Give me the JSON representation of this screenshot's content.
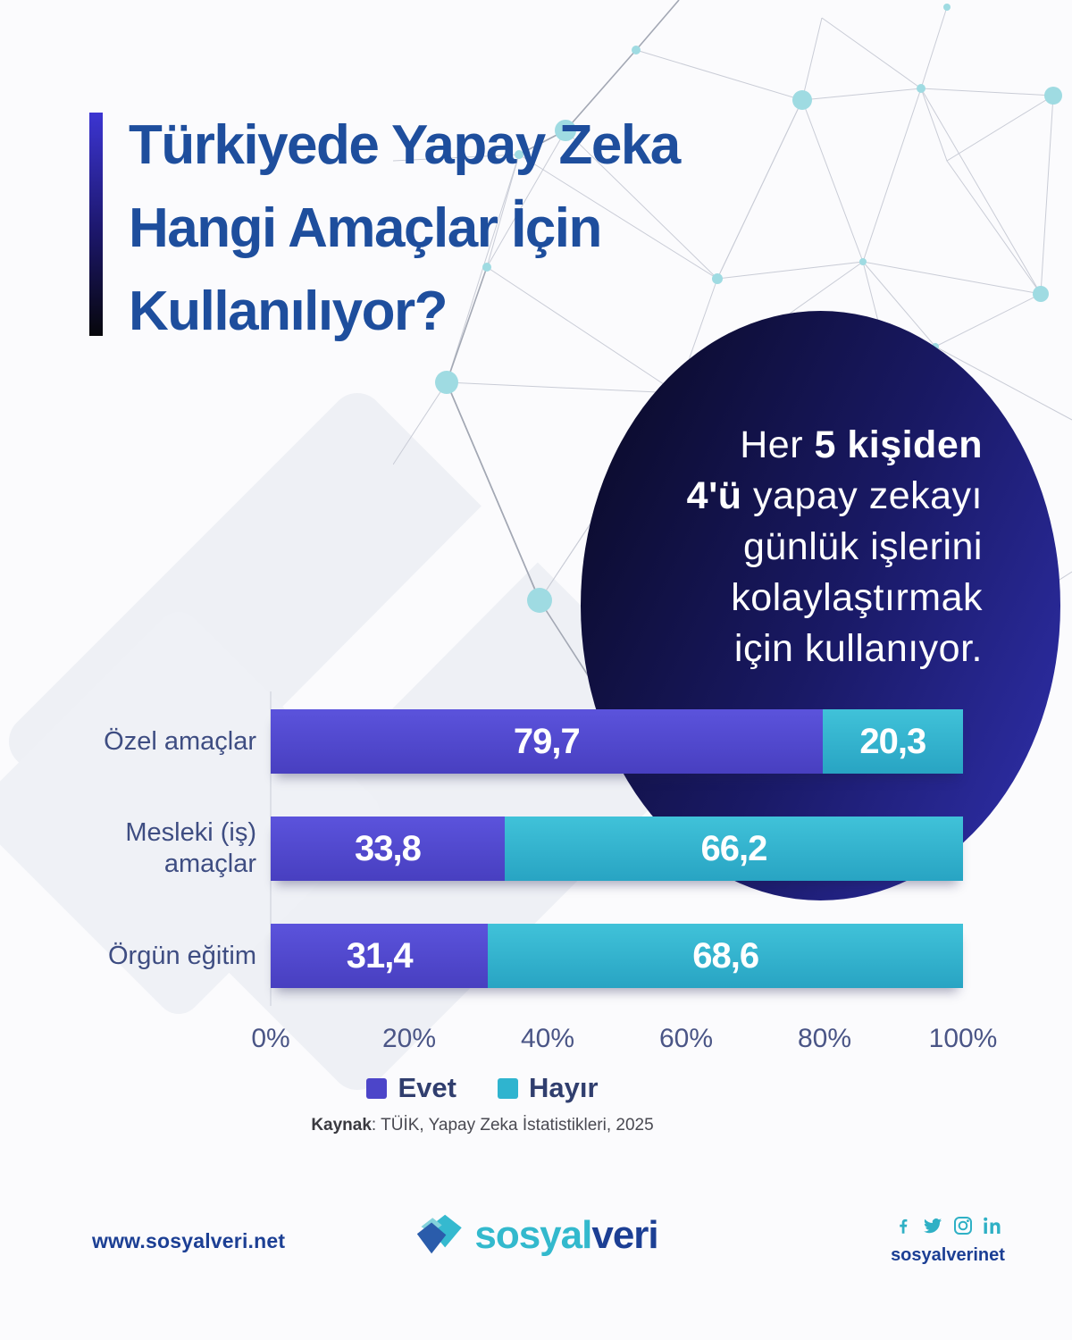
{
  "header": {
    "title_lines": [
      "Türkiyede Yapay Zeka",
      "Hangi Amaçlar İçin",
      "Kullanılıyor?"
    ]
  },
  "hero": {
    "line1_regular": "Her ",
    "line1_bold": "5 kişiden",
    "line2_bold": "4'ü",
    "line2_regular": " yapay zekayı",
    "line3": "günlük işlerini",
    "line4": "kolaylaştırmak",
    "line5": "için kullanıyor."
  },
  "chart_data": {
    "type": "bar",
    "orientation": "horizontal",
    "stacked": true,
    "categories": [
      "Özel amaçlar",
      "Mesleki (iş) amaçlar",
      "Örgün eğitim"
    ],
    "series": [
      {
        "name": "Evet",
        "color": "#4c45c9",
        "values": [
          79.7,
          33.8,
          31.4
        ]
      },
      {
        "name": "Hayır",
        "color": "#2fb4cf",
        "values": [
          20.3,
          66.2,
          68.6
        ]
      }
    ],
    "x_ticks": [
      "0%",
      "20%",
      "40%",
      "60%",
      "80%",
      "100%"
    ],
    "xlim": [
      0,
      100
    ],
    "grid": false,
    "legend_position": "bottom",
    "value_decimal_separator": ",",
    "source_label": "Kaynak",
    "source_text": ": TÜİK, Yapay Zeka İstatistikleri, 2025"
  },
  "footer": {
    "website": "www.sosyalveri.net",
    "logo_text_primary": "sosyal",
    "logo_text_secondary": "veri",
    "social_icons": [
      "facebook",
      "twitter",
      "instagram",
      "linkedin"
    ],
    "social_handle": "sosyalverinet"
  },
  "colors": {
    "title_blue": "#1e4e9d",
    "evet_purple": "#4c45c9",
    "hayir_teal": "#2fb4cf",
    "circle_dark": "#0b0b2b",
    "circle_light": "#2e2ea8",
    "brand_teal": "#33b9cd",
    "brand_navy": "#1c3f94"
  }
}
